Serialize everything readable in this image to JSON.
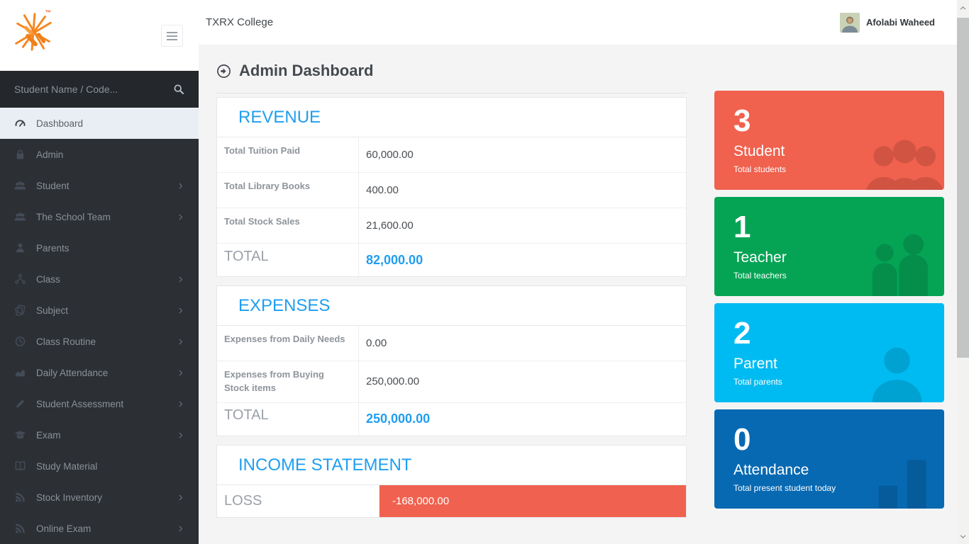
{
  "topbar": {
    "brand": "TXRX College",
    "user_name": "Afolabi Waheed"
  },
  "sidebar": {
    "search_placeholder": "Student Name / Code...",
    "items": [
      {
        "label": "Dashboard",
        "icon": "gauge-icon",
        "active": true,
        "has_submenu": false
      },
      {
        "label": "Admin",
        "icon": "lock-icon",
        "active": false,
        "has_submenu": false
      },
      {
        "label": "Student",
        "icon": "users-icon",
        "active": false,
        "has_submenu": true
      },
      {
        "label": "The School Team",
        "icon": "users-icon",
        "active": false,
        "has_submenu": true
      },
      {
        "label": "Parents",
        "icon": "user-icon",
        "active": false,
        "has_submenu": false
      },
      {
        "label": "Class",
        "icon": "sitemap-icon",
        "active": false,
        "has_submenu": true
      },
      {
        "label": "Subject",
        "icon": "copy-icon",
        "active": false,
        "has_submenu": true
      },
      {
        "label": "Class Routine",
        "icon": "clock-icon",
        "active": false,
        "has_submenu": true
      },
      {
        "label": "Daily Attendance",
        "icon": "area-chart-icon",
        "active": false,
        "has_submenu": true
      },
      {
        "label": "Student Assessment",
        "icon": "pencil-icon",
        "active": false,
        "has_submenu": true
      },
      {
        "label": "Exam",
        "icon": "graduation-cap-icon",
        "active": false,
        "has_submenu": true
      },
      {
        "label": "Study Material",
        "icon": "book-icon",
        "active": false,
        "has_submenu": false
      },
      {
        "label": "Stock Inventory",
        "icon": "rss-icon",
        "active": false,
        "has_submenu": true
      },
      {
        "label": "Online Exam",
        "icon": "rss-icon",
        "active": false,
        "has_submenu": true
      }
    ]
  },
  "page": {
    "title": "Admin Dashboard"
  },
  "panels": [
    {
      "title": "REVENUE",
      "rows": [
        {
          "label": "Total Tuition Paid",
          "value": "60,000.00"
        },
        {
          "label": "Total Library Books",
          "value": "400.00"
        },
        {
          "label": "Total Stock Sales",
          "value": "21,600.00"
        }
      ],
      "total_label": "TOTAL",
      "total_value": "82,000.00"
    },
    {
      "title": "EXPENSES",
      "rows": [
        {
          "label": "Expenses from Daily Needs",
          "value": "0.00"
        },
        {
          "label": "Expenses from Buying Stock items",
          "value": "250,000.00"
        }
      ],
      "total_label": "TOTAL",
      "total_value": "250,000.00"
    }
  ],
  "income": {
    "title": "INCOME STATEMENT",
    "row_label": "LOSS",
    "row_value": "-168,000.00"
  },
  "stat_cards": [
    {
      "count": "3",
      "label": "Student",
      "sublabel": "Total students",
      "color": "#f0614e",
      "watermark": "group3-icon"
    },
    {
      "count": "1",
      "label": "Teacher",
      "sublabel": "Total teachers",
      "color": "#05a455",
      "watermark": "group2-icon"
    },
    {
      "count": "2",
      "label": "Parent",
      "sublabel": "Total parents",
      "color": "#00bbf2",
      "watermark": "person-icon"
    },
    {
      "count": "0",
      "label": "Attendance",
      "sublabel": "Total present student today",
      "color": "#0769b2",
      "watermark": "bars-icon"
    }
  ],
  "colors": {
    "accent_blue": "#1f9ef0",
    "loss_red": "#f0624f",
    "sidebar_dark": "#2c3034",
    "card_red": "#f0614e",
    "card_green": "#05a455",
    "card_cyan": "#00bbf2",
    "card_blue": "#0769b2"
  }
}
